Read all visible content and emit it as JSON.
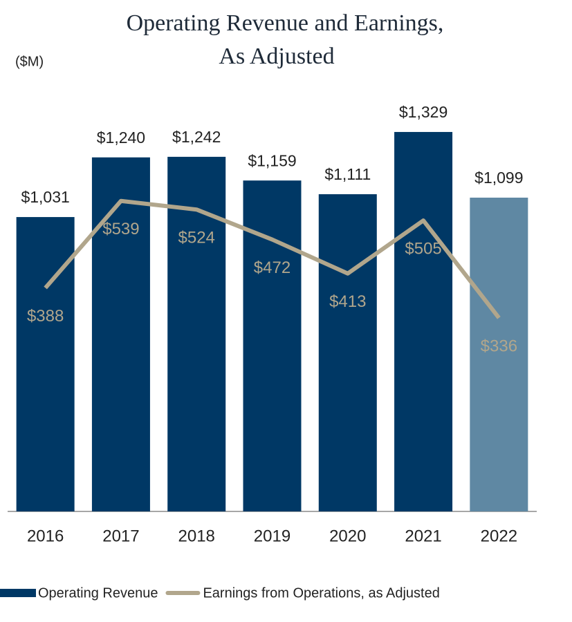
{
  "chart_data": {
    "type": "bar",
    "title": [
      "Operating Revenue and Earnings,",
      "As Adjusted"
    ],
    "unit_label": "($M)",
    "categories": [
      "2016",
      "2017",
      "2018",
      "2019",
      "2020",
      "2021",
      "2022"
    ],
    "series": [
      {
        "name": "Operating Revenue",
        "type": "bar",
        "color": "#003865",
        "colors": [
          "#003865",
          "#003865",
          "#003865",
          "#003865",
          "#003865",
          "#003865",
          "#5f88a3"
        ],
        "values": [
          1031,
          1240,
          1242,
          1159,
          1111,
          1329,
          1099
        ],
        "value_labels": [
          "$1,031",
          "$1,240",
          "$1,242",
          "$1,159",
          "$1,111",
          "$1,329",
          "$1,099"
        ]
      },
      {
        "name": "Earnings from Operations, as Adjusted",
        "type": "line",
        "axis": "y2",
        "color": "#b1a68c",
        "values": [
          388,
          539,
          524,
          472,
          413,
          505,
          336
        ],
        "value_labels": [
          "$388",
          "$539",
          "$524",
          "$472",
          "$413",
          "$505",
          "$336"
        ]
      }
    ],
    "ylim": [
      0,
      1600
    ],
    "y2lim": [
      0,
      793
    ],
    "legend": "bottom"
  }
}
